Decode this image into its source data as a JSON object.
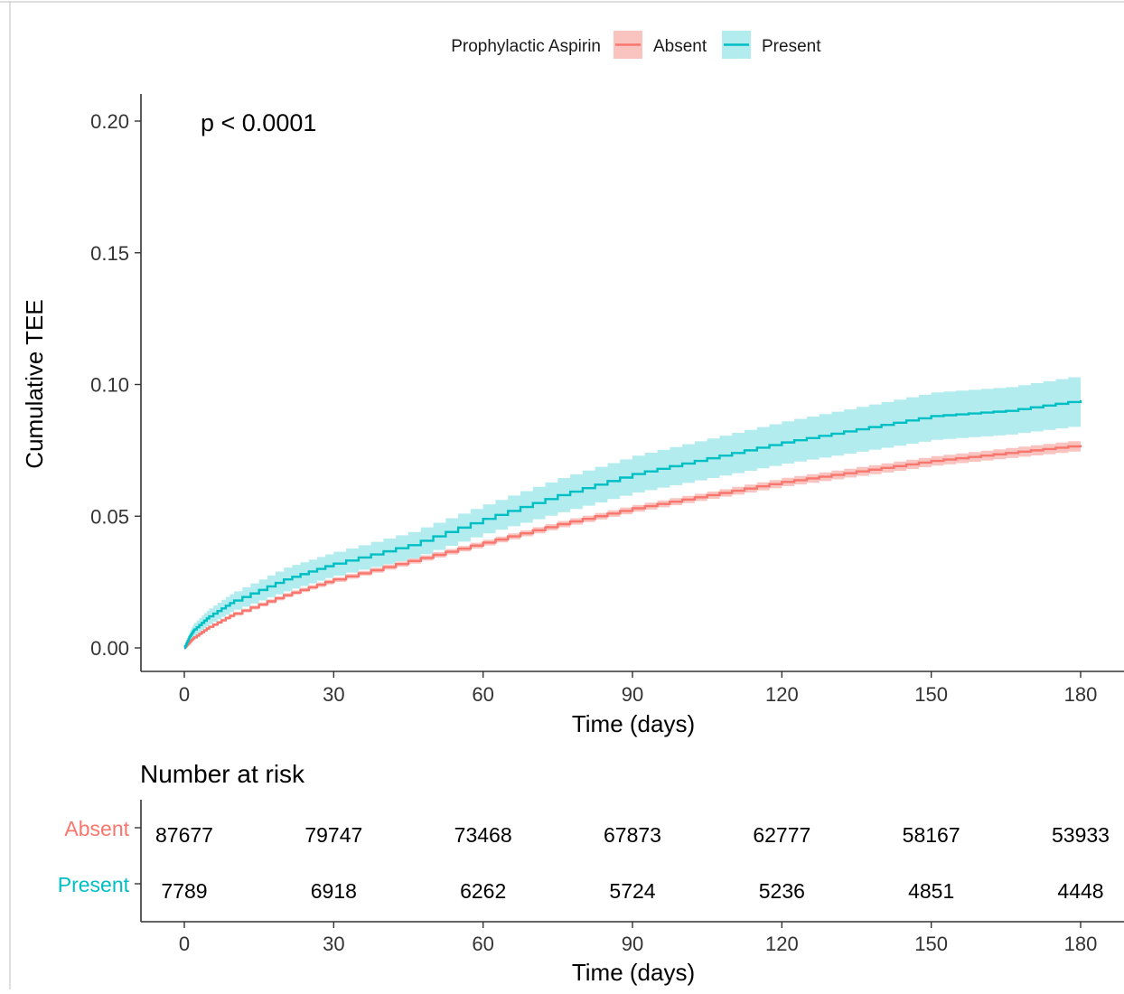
{
  "chart_data": [
    {
      "type": "line",
      "subtype": "cumulative-incidence-step",
      "legend": {
        "title": "Prophylactic Aspirin",
        "placement": "top"
      },
      "annotation": "p < 0.0001",
      "xlabel": "Time (days)",
      "ylabel": "Cumulative TEE",
      "xlim": [
        0,
        180
      ],
      "ylim": [
        0,
        0.2
      ],
      "x_ticks": [
        "0",
        "30",
        "60",
        "90",
        "120",
        "150",
        "180"
      ],
      "y_ticks": [
        "0.00",
        "0.05",
        "0.10",
        "0.15",
        "0.20"
      ],
      "grid": false,
      "x": [
        0,
        1,
        2,
        5,
        10,
        20,
        30,
        45,
        60,
        75,
        90,
        105,
        120,
        135,
        150,
        165,
        180
      ],
      "series": [
        {
          "name": "Absent",
          "color": "#F8766D",
          "band_color": "#F8B5B0",
          "values": [
            0.0,
            0.002,
            0.004,
            0.008,
            0.013,
            0.02,
            0.026,
            0.033,
            0.04,
            0.047,
            0.053,
            0.058,
            0.063,
            0.067,
            0.071,
            0.074,
            0.077
          ],
          "lower": [
            0.0,
            0.0015,
            0.0035,
            0.0075,
            0.0123,
            0.0192,
            0.0251,
            0.032,
            0.0389,
            0.0458,
            0.0517,
            0.0566,
            0.0614,
            0.0653,
            0.0692,
            0.0721,
            0.075
          ],
          "upper": [
            0.0,
            0.0025,
            0.0045,
            0.0085,
            0.0137,
            0.0208,
            0.0269,
            0.034,
            0.0411,
            0.0482,
            0.0543,
            0.0594,
            0.0646,
            0.0687,
            0.0728,
            0.0759,
            0.079
          ]
        },
        {
          "name": "Present",
          "color": "#00BFC4",
          "band_color": "#9FE7EA",
          "values": [
            0.0,
            0.004,
            0.007,
            0.012,
            0.018,
            0.026,
            0.032,
            0.039,
            0.049,
            0.058,
            0.066,
            0.072,
            0.078,
            0.083,
            0.088,
            0.09,
            0.094
          ],
          "lower": [
            0.0,
            0.002,
            0.0045,
            0.009,
            0.0145,
            0.0215,
            0.0275,
            0.034,
            0.0435,
            0.0515,
            0.059,
            0.0645,
            0.07,
            0.0745,
            0.079,
            0.081,
            0.0845
          ],
          "upper": [
            0.0,
            0.006,
            0.0095,
            0.015,
            0.0215,
            0.0305,
            0.0365,
            0.044,
            0.0545,
            0.0645,
            0.073,
            0.0795,
            0.086,
            0.0915,
            0.097,
            0.099,
            0.1035
          ]
        }
      ]
    },
    {
      "type": "table",
      "title": "Number at risk",
      "xlabel": "Time (days)",
      "x_ticks": [
        "0",
        "30",
        "60",
        "90",
        "120",
        "150",
        "180"
      ],
      "columns": [
        0,
        30,
        60,
        90,
        120,
        150,
        180
      ],
      "rows": [
        {
          "name": "Absent",
          "color": "#F8766D",
          "values": [
            "87677",
            "79747",
            "73468",
            "67873",
            "62777",
            "58167",
            "53933"
          ]
        },
        {
          "name": "Present",
          "color": "#00BFC4",
          "values": [
            "7789",
            "6918",
            "6262",
            "5724",
            "5236",
            "4851",
            "4448"
          ]
        }
      ]
    }
  ]
}
